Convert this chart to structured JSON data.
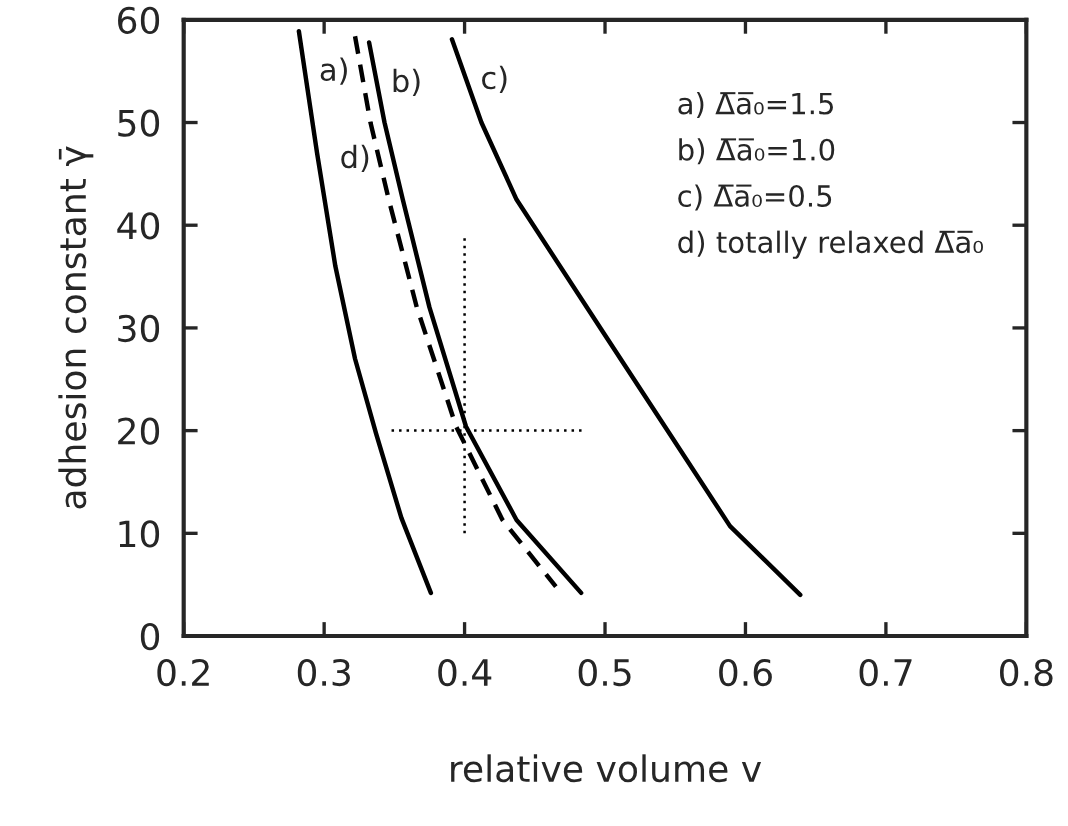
{
  "chart_data": {
    "type": "line",
    "xlabel": "relative volume v",
    "ylabel": "adhesion constant γ̄",
    "xlim": [
      0.2,
      0.8
    ],
    "xticks": [
      0.2,
      0.3,
      0.4,
      0.5,
      0.6,
      0.7,
      0.8
    ],
    "ylim": [
      0,
      60
    ],
    "yticks": [
      0,
      10,
      20,
      30,
      40,
      50,
      60
    ],
    "grid": false,
    "legend": false,
    "marker": "none",
    "series": [
      {
        "name": "a)",
        "color": "#000000",
        "line_style": "solid",
        "x": [
          0.282,
          0.295,
          0.308,
          0.322,
          0.337,
          0.355,
          0.376
        ],
        "values": [
          58.9,
          47,
          36,
          27,
          19.7,
          11.5,
          4.2
        ]
      },
      {
        "name": "b)",
        "color": "#000000",
        "line_style": "solid",
        "x": [
          0.332,
          0.343,
          0.356,
          0.375,
          0.401,
          0.437,
          0.483
        ],
        "values": [
          57.8,
          50,
          42.5,
          32,
          20.4,
          11.3,
          4.2
        ]
      },
      {
        "name": "c)",
        "color": "#000000",
        "line_style": "solid",
        "x": [
          0.391,
          0.412,
          0.437,
          0.499,
          0.546,
          0.589,
          0.639
        ],
        "values": [
          58.1,
          50,
          42.5,
          29.5,
          19.7,
          10.7,
          4.0
        ]
      },
      {
        "name": "d)",
        "color": "#000000",
        "line_style": "dashed",
        "x": [
          0.322,
          0.333,
          0.346,
          0.366,
          0.394,
          0.427,
          0.465
        ],
        "values": [
          58.4,
          50,
          42.5,
          32,
          20.4,
          11.3,
          4.8
        ]
      },
      {
        "color": "#000000",
        "line_style": "dotted",
        "x": [
          0.4,
          0.4
        ],
        "values": [
          10,
          38.9
        ]
      },
      {
        "color": "#000000",
        "line_style": "dotted",
        "x": [
          0.348,
          0.484
        ],
        "values": [
          20,
          20
        ]
      }
    ],
    "annotations": [
      "a) Δ̅a̅₀=1.5",
      "b) Δ̅a̅₀=1.0",
      "c) Δ̅a̅₀=0.5",
      "d) totally relaxed Δ̅a̅₀"
    ]
  }
}
